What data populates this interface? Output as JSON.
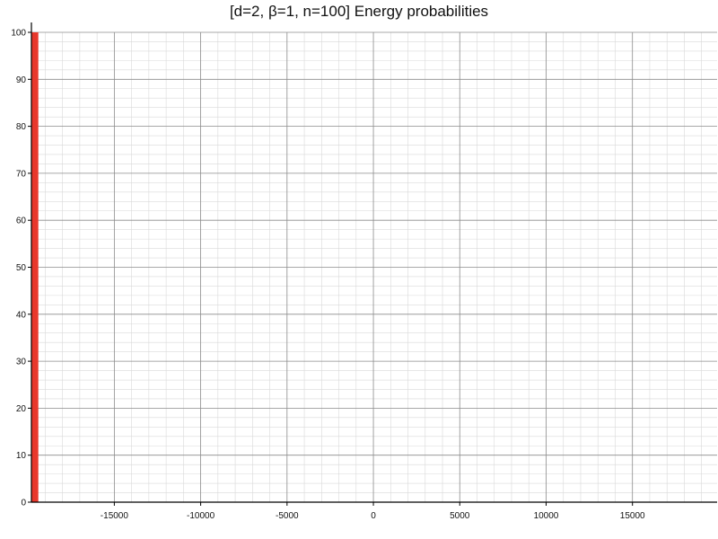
{
  "chart_data": {
    "type": "bar",
    "title": "[d=2, β=1, n=100] Energy probabilities",
    "xlabel": "",
    "ylabel": "",
    "xlim": [
      -19800,
      19900
    ],
    "ylim": [
      0,
      100
    ],
    "x_ticks": [
      -15000,
      -10000,
      -5000,
      0,
      5000,
      10000,
      15000
    ],
    "y_ticks": [
      0,
      10,
      20,
      30,
      40,
      50,
      60,
      70,
      80,
      90,
      100
    ],
    "grid": true,
    "minor_grid": true,
    "bars": [
      {
        "x_start": -19800,
        "x_end": -19400,
        "value": 100,
        "color": "#e8382c"
      }
    ]
  }
}
